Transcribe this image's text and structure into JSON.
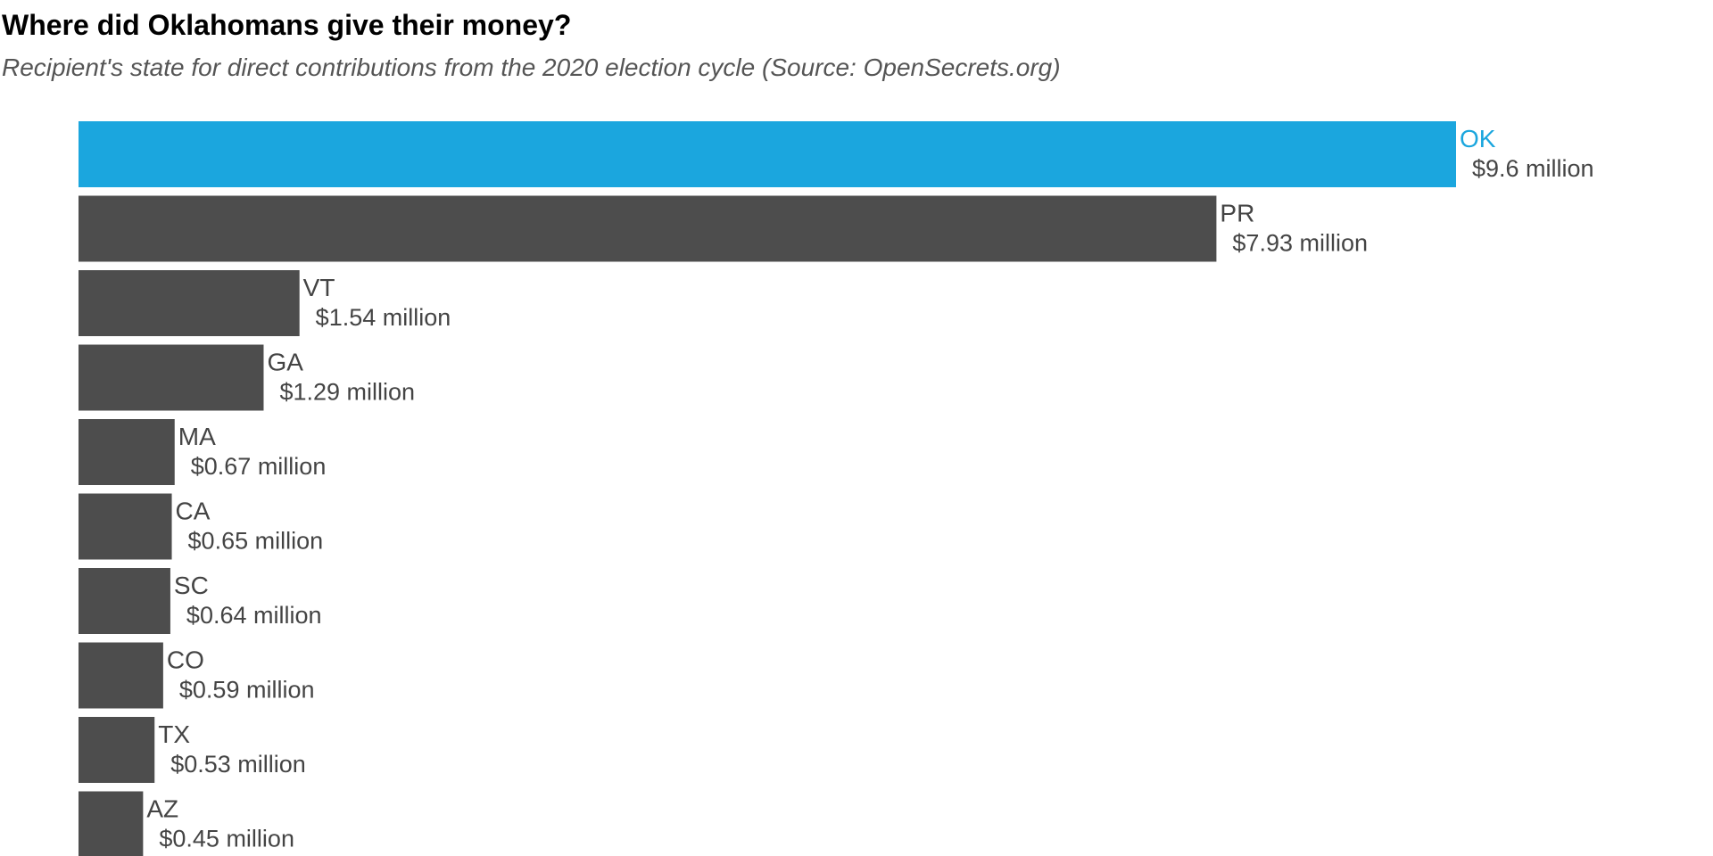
{
  "chart_data": {
    "type": "bar",
    "orientation": "horizontal",
    "title": "Where did Oklahomans give their money?",
    "subtitle": "Recipient's state for direct contributions from the 2020 election cycle (Source: OpenSecrets.org)",
    "categories": [
      "OK",
      "PR",
      "VT",
      "GA",
      "MA",
      "CA",
      "SC",
      "CO",
      "TX",
      "AZ"
    ],
    "values": [
      9.6,
      7.93,
      1.54,
      1.29,
      0.67,
      0.65,
      0.64,
      0.59,
      0.53,
      0.45
    ],
    "value_labels": [
      "$9.6 million",
      "$7.93 million",
      "$1.54 million",
      "$1.29 million",
      "$0.67 million",
      "$0.65 million",
      "$0.64 million",
      "$0.59 million",
      "$0.53 million",
      "$0.45 million"
    ],
    "unit": "million USD",
    "highlight_category": "OK",
    "xlim": [
      0,
      9.6
    ],
    "grid": false,
    "legend": "none",
    "colors": {
      "highlight": "#1ba6de",
      "bar": "#4d4d4d",
      "label": "#444444"
    }
  }
}
